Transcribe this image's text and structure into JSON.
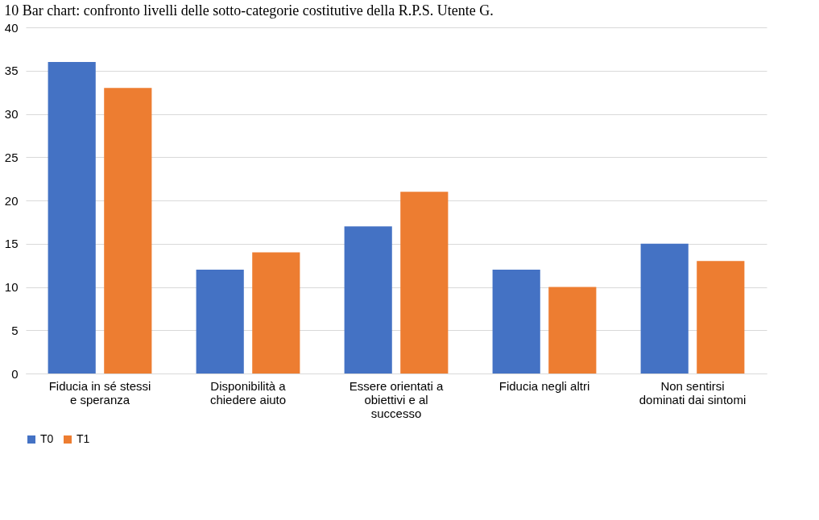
{
  "chart_data": {
    "type": "bar",
    "title": "10 Bar chart: confronto livelli delle sotto-categorie costitutive della R.P.S. Utente G.",
    "categories": [
      "Fiducia in sé stessi e speranza",
      "Disponibilità a chiedere aiuto",
      "Essere orientati a obiettivi e al successo",
      "Fiducia negli altri",
      "Non sentirsi dominati dai sintomi"
    ],
    "series": [
      {
        "name": "T0",
        "color": "#4472c4",
        "values": [
          36,
          12,
          17,
          12,
          15
        ]
      },
      {
        "name": "T1",
        "color": "#ed7d31",
        "values": [
          33,
          14,
          21,
          10,
          13
        ]
      }
    ],
    "ylim": [
      0,
      40
    ],
    "yticks": [
      0,
      5,
      10,
      15,
      20,
      25,
      30,
      35,
      40
    ],
    "grid": "y",
    "legend": "bottom"
  }
}
